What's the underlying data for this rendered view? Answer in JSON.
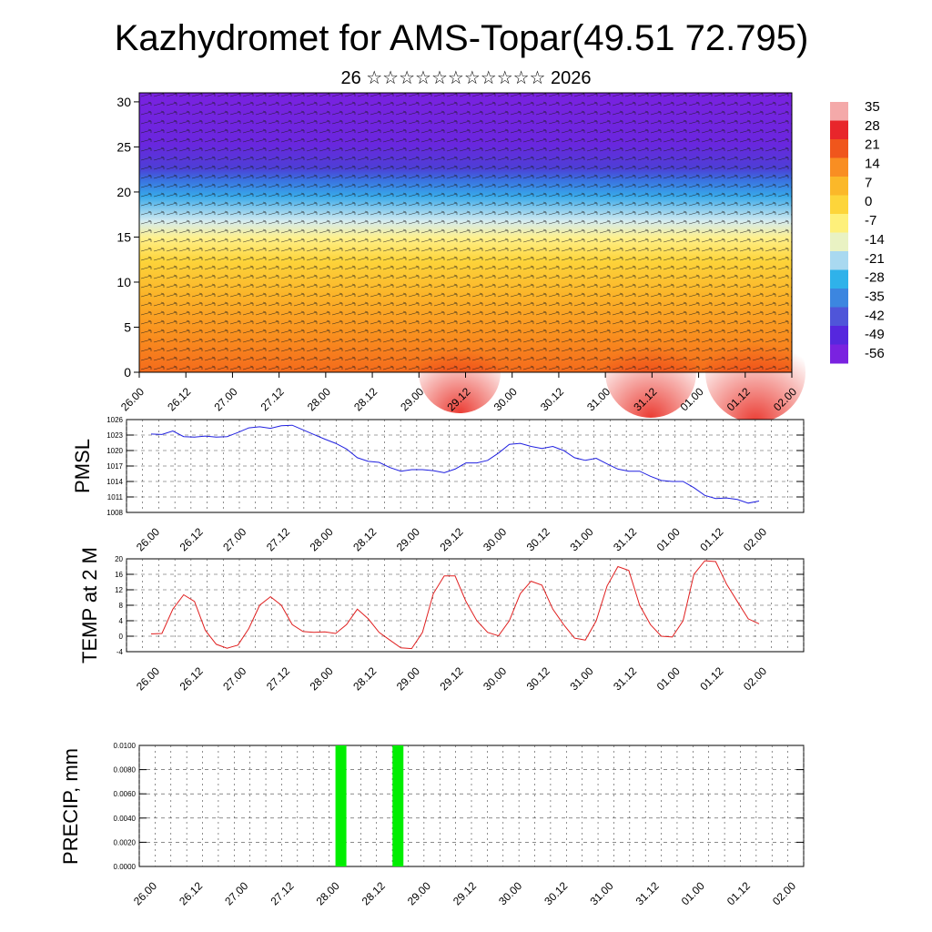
{
  "header": {
    "title": "Kazhydromet for AMS-Topar(49.51 72.795)",
    "subtitle": "26 ☆☆☆☆☆☆☆☆☆☆☆ 2026"
  },
  "time_labels": [
    "26.00",
    "26.12",
    "27.00",
    "27.12",
    "28.00",
    "28.12",
    "29.00",
    "29.12",
    "30.00",
    "30.12",
    "31.00",
    "31.12",
    "01.00",
    "01.12",
    "02.00"
  ],
  "chart_data": [
    {
      "type": "heatmap",
      "name": "cross-section",
      "y_ticks": [
        "0",
        "5",
        "10",
        "15",
        "20",
        "25",
        "30"
      ],
      "ylim": [
        0,
        31
      ],
      "colorbar_labels": [
        "35",
        "28",
        "21",
        "14",
        "7",
        "0",
        "-7",
        "-14",
        "-21",
        "-28",
        "-35",
        "-42",
        "-49",
        "-56"
      ],
      "colorbar_colors": [
        "#f4a9a9",
        "#e8262b",
        "#f0561c",
        "#f98e22",
        "#fbb829",
        "#fdd53a",
        "#fef07a",
        "#e9f2c3",
        "#a9d9f0",
        "#2fb2ea",
        "#3c86e0",
        "#4f55d9",
        "#5627de",
        "#7a22e0"
      ]
    },
    {
      "type": "line",
      "ylabel": "PMSL",
      "ylim": [
        1008,
        1026
      ],
      "y_ticks": [
        "1008",
        "1011",
        "1014",
        "1017",
        "1020",
        "1023",
        "1026"
      ],
      "color": "#2020e0",
      "values": [
        1023.2,
        1023.1,
        1023.8,
        1022.7,
        1022.6,
        1022.8,
        1022.6,
        1022.7,
        1023.5,
        1024.4,
        1024.6,
        1024.3,
        1024.8,
        1024.9,
        1024.0,
        1023.1,
        1022.2,
        1021.4,
        1020.3,
        1018.6,
        1017.9,
        1017.7,
        1016.7,
        1016.0,
        1016.3,
        1016.3,
        1016.1,
        1015.7,
        1016.4,
        1017.6,
        1017.6,
        1018.1,
        1019.5,
        1021.2,
        1021.4,
        1020.8,
        1020.4,
        1020.8,
        1020.0,
        1018.6,
        1018.1,
        1018.5,
        1017.4,
        1016.4,
        1016.0,
        1016.0,
        1015.0,
        1014.2,
        1014.0,
        1014.0,
        1012.8,
        1011.3,
        1010.7,
        1010.8,
        1010.5,
        1009.8,
        1010.2
      ]
    },
    {
      "type": "line",
      "ylabel": "TEMP at 2 M",
      "ylim": [
        -4,
        20
      ],
      "y_ticks": [
        "-4",
        "0",
        "4",
        "8",
        "12",
        "16",
        "20"
      ],
      "color": "#e02020",
      "values": [
        0.6,
        0.7,
        7.0,
        10.7,
        9.0,
        1.5,
        -2.1,
        -3.1,
        -2.3,
        2.0,
        8.0,
        10.2,
        8.0,
        3.0,
        1.2,
        1.0,
        1.1,
        0.7,
        3.0,
        7.0,
        4.5,
        1.0,
        -1.0,
        -3.0,
        -3.2,
        1.0,
        11.0,
        15.6,
        15.6,
        9.0,
        4.0,
        1.0,
        0.1,
        4.0,
        11.0,
        14.2,
        13.2,
        7.0,
        3.0,
        -0.5,
        -1.0,
        4.0,
        13.0,
        18.0,
        17.0,
        8.0,
        3.0,
        0.0,
        -0.2,
        4.0,
        16.0,
        19.5,
        19.3,
        13.5,
        9.0,
        4.5,
        3.2
      ]
    },
    {
      "type": "bar",
      "ylabel": "PRECIP, mm",
      "ylim": [
        0,
        0.01
      ],
      "y_ticks": [
        "0.0000",
        "0.0020",
        "0.0040",
        "0.0060",
        "0.0080",
        "0.0100"
      ],
      "color": "#00ee00",
      "bars": [
        {
          "x": 4.0,
          "value": 0.01
        },
        {
          "x": 5.25,
          "value": 0.01
        }
      ]
    }
  ]
}
